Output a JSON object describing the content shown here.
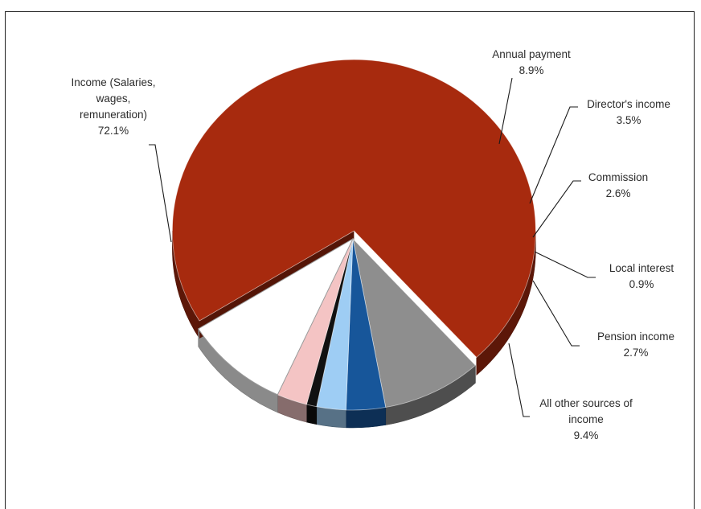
{
  "header": {
    "title_fragment": ""
  },
  "chart_data": {
    "type": "pie",
    "title": "",
    "slices": [
      {
        "label_lines": [
          "Income (Salaries,",
          "wages,",
          "remuneration)"
        ],
        "value": 72.1,
        "value_text": "72.1%",
        "color": "#a72a0e"
      },
      {
        "label_lines": [
          "Annual payment"
        ],
        "value": 8.9,
        "value_text": "8.9%",
        "color": "#8e8e8e"
      },
      {
        "label_lines": [
          "Director's income"
        ],
        "value": 3.5,
        "value_text": "3.5%",
        "color": "#17569a"
      },
      {
        "label_lines": [
          "Commission"
        ],
        "value": 2.6,
        "value_text": "2.6%",
        "color": "#9ecdf4"
      },
      {
        "label_lines": [
          "Local interest"
        ],
        "value": 0.9,
        "value_text": "0.9%",
        "color": "#111111"
      },
      {
        "label_lines": [
          "Pension income"
        ],
        "value": 2.7,
        "value_text": "2.7%",
        "color": "#f4c4c4"
      },
      {
        "label_lines": [
          "All other sources of",
          "income"
        ],
        "value": 9.4,
        "value_text": "9.4%",
        "color": "#ffffff"
      }
    ],
    "style": "3d-exploded",
    "legend": "none (leader-line labels)"
  }
}
